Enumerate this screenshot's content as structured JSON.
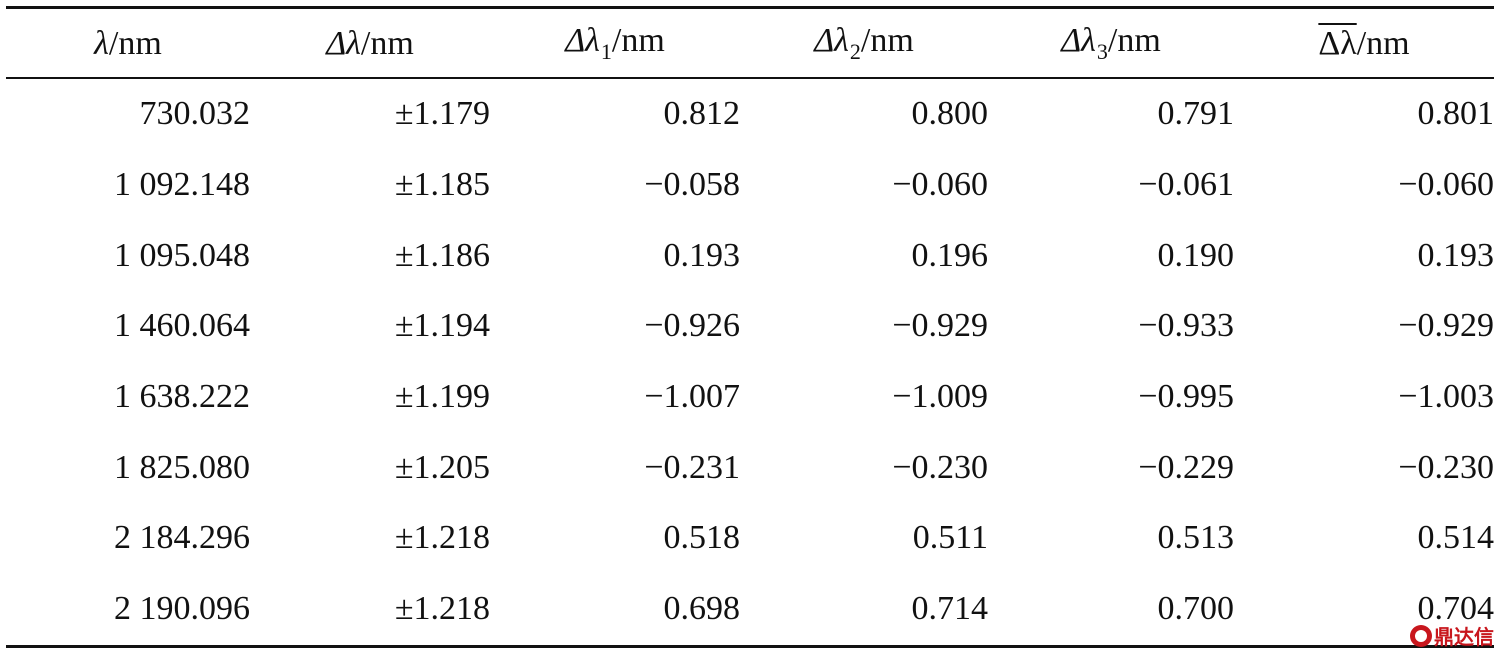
{
  "table": {
    "headers": [
      {
        "symbol": "λ",
        "subscript": "",
        "unit": "/nm",
        "overline": false
      },
      {
        "symbol": "Δλ",
        "subscript": "",
        "unit": "/nm",
        "overline": false
      },
      {
        "symbol": "Δλ",
        "subscript": "1",
        "unit": "/nm",
        "overline": false
      },
      {
        "symbol": "Δλ",
        "subscript": "2",
        "unit": "/nm",
        "overline": false
      },
      {
        "symbol": "Δλ",
        "subscript": "3",
        "unit": "/nm",
        "overline": false
      },
      {
        "symbol": "Δλ",
        "subscript": "",
        "unit": "/nm",
        "overline": true
      }
    ],
    "rows": [
      [
        "730.032",
        "±1.179",
        "0.812",
        "0.800",
        "0.791",
        "0.801"
      ],
      [
        "1 092.148",
        "±1.185",
        "−0.058",
        "−0.060",
        "−0.061",
        "−0.060"
      ],
      [
        "1 095.048",
        "±1.186",
        "0.193",
        "0.196",
        "0.190",
        "0.193"
      ],
      [
        "1 460.064",
        "±1.194",
        "−0.926",
        "−0.929",
        "−0.933",
        "−0.929"
      ],
      [
        "1 638.222",
        "±1.199",
        "−1.007",
        "−1.009",
        "−0.995",
        "−1.003"
      ],
      [
        "1 825.080",
        "±1.205",
        "−0.231",
        "−0.230",
        "−0.229",
        "−0.230"
      ],
      [
        "2 184.296",
        "±1.218",
        "0.518",
        "0.511",
        "0.513",
        "0.514"
      ],
      [
        "2 190.096",
        "±1.218",
        "0.698",
        "0.714",
        "0.700",
        "0.704"
      ]
    ]
  },
  "watermark": {
    "text": "鼎达信",
    "icon": "seal-logo-icon",
    "color": "#c8161d"
  }
}
